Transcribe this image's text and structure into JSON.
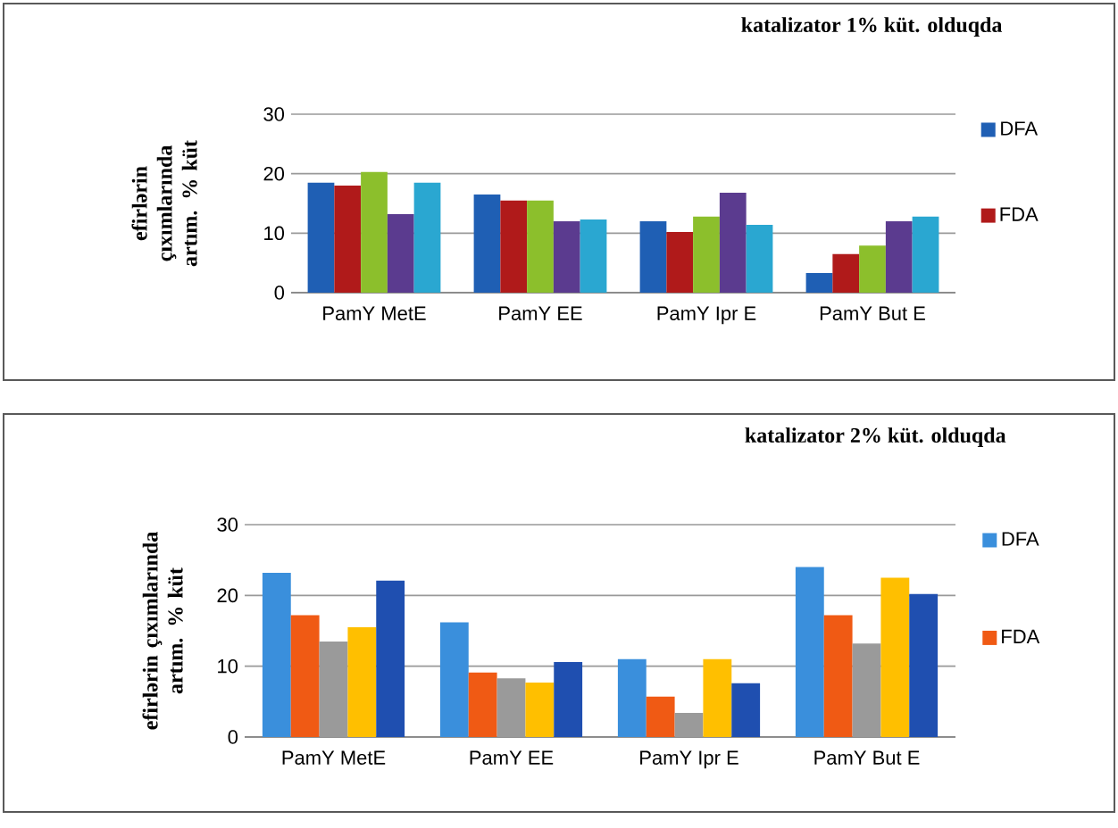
{
  "chart_data": [
    {
      "type": "bar",
      "title": "katalizator 1% küt. olduqda",
      "ylabel": "efirlərin çıxımlarında artım. % küt",
      "categories": [
        "PamY MetE",
        "PamY EE",
        "PamY Ipr E",
        "PamY But E"
      ],
      "ylim": [
        0,
        30
      ],
      "yticks": [
        0,
        10,
        20,
        30
      ],
      "grid": "y",
      "legend": "right",
      "series": [
        {
          "name": "DFA",
          "color": "#1f5fb4",
          "values": [
            18.5,
            16.5,
            12,
            3.3
          ]
        },
        {
          "name": "FDA",
          "color": "#b01a1a",
          "values": [
            18,
            15.5,
            10.2,
            6.5
          ]
        },
        {
          "color": "#8cbf2c",
          "values": [
            20.3,
            15.5,
            12.8,
            7.9
          ]
        },
        {
          "color": "#5b3b8f",
          "values": [
            13.2,
            12,
            16.8,
            12
          ]
        },
        {
          "color": "#2aa7d1",
          "values": [
            18.5,
            12.3,
            11.4,
            12.8
          ]
        }
      ]
    },
    {
      "type": "bar",
      "title": "katalizator 2% küt. olduqda",
      "ylabel": "efirlərin çıxımlarında artım. % küt",
      "categories": [
        "PamY MetE",
        "PamY EE",
        "PamY Ipr E",
        "PamY But E"
      ],
      "ylim": [
        0,
        30
      ],
      "yticks": [
        0,
        10,
        20,
        30
      ],
      "grid": "y",
      "legend": "right",
      "series": [
        {
          "name": "DFA",
          "color": "#3a8fdc",
          "values": [
            23.2,
            16.2,
            11,
            24
          ]
        },
        {
          "name": "FDA",
          "color": "#f05a14",
          "values": [
            17.2,
            9.1,
            5.7,
            17.2
          ]
        },
        {
          "color": "#9a9a9a",
          "values": [
            13.5,
            8.3,
            3.4,
            13.2
          ]
        },
        {
          "color": "#ffbf00",
          "values": [
            15.5,
            7.7,
            11,
            22.5
          ]
        },
        {
          "color": "#1f4fb0",
          "values": [
            22.1,
            10.6,
            7.6,
            20.2
          ]
        }
      ]
    }
  ]
}
